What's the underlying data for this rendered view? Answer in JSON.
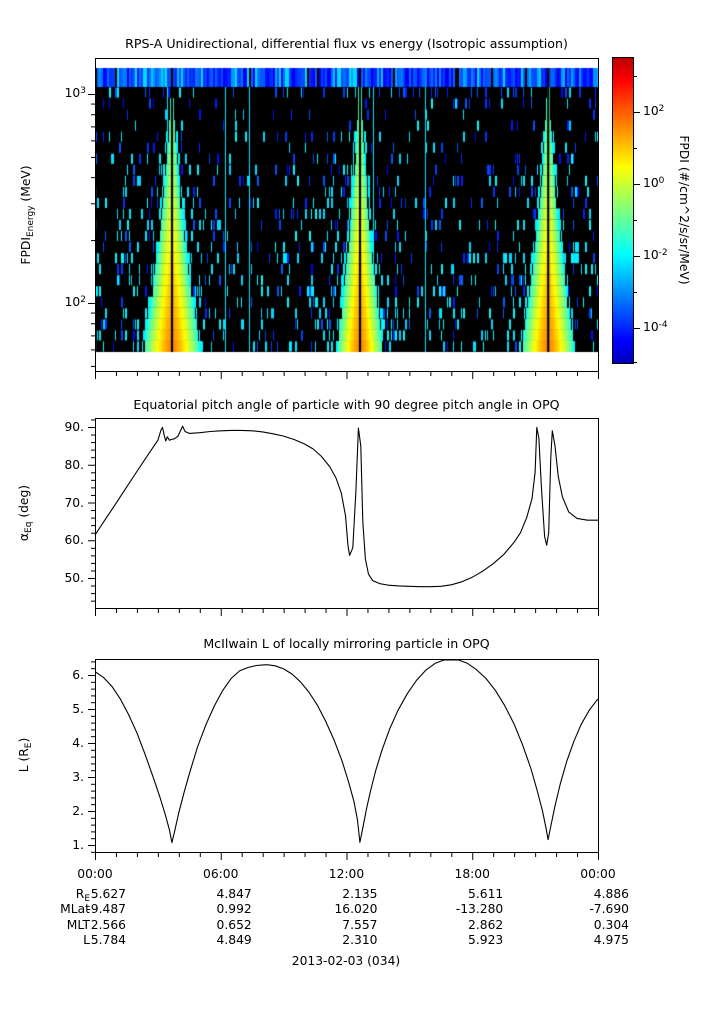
{
  "figure": {
    "background": "#ffffff"
  },
  "time_axis": {
    "tick_labels": [
      "00:00",
      "06:00",
      "12:00",
      "18:00",
      "00:00"
    ],
    "major_step_h": 6,
    "minor_step_h": 1,
    "range_h": [
      0,
      24
    ]
  },
  "chart_data": [
    {
      "type": "heatmap",
      "title": "RPS-A Unidirectional, differential flux vs energy (Isotropic assumption)",
      "ylabel": {
        "main": "FPDI",
        "sub": "Energy",
        "unit": " (MeV)"
      },
      "yscale": "log",
      "yrange_mev": [
        47,
        1470
      ],
      "ytick_major_mev": [
        100,
        1000
      ],
      "ytick_exponents": [
        3,
        2
      ],
      "ytick_minor_mev": [
        50,
        60,
        70,
        80,
        90,
        200,
        300,
        400,
        500,
        600,
        700,
        800,
        900
      ],
      "top_band": {
        "energy_mev": [
          1070,
          1320
        ],
        "color_hint": "blue stripes"
      },
      "background_color": "#000000",
      "enhancements": [
        {
          "center_h": 3.67,
          "halfwidth_h": 1.34,
          "core_color": "orange",
          "edge_color": "green"
        },
        {
          "center_h": 12.64,
          "halfwidth_h": 1.1,
          "core_color": "orange",
          "edge_color": "green"
        },
        {
          "center_h": 21.62,
          "halfwidth_h": 1.24,
          "core_color": "orange",
          "edge_color": "green"
        }
      ],
      "data_gap_at_enhancement_centers": true,
      "colorbar": {
        "label": "FPDI (#/cm^2/s/sr/MeV)",
        "tick_exponents": [
          2,
          0,
          -2,
          -4
        ],
        "minor_exponents": [
          3,
          1,
          -1,
          -3,
          -5
        ],
        "range_exponents": [
          -5,
          3.5
        ],
        "colormap": "jet"
      }
    },
    {
      "type": "line",
      "title": "Equatorial pitch angle of particle with 90 degree pitch angle in OPQ",
      "ylabel": {
        "main": "α",
        "sub": "Eq",
        "unit": " (deg)"
      },
      "yticks": [
        50,
        60,
        70,
        80,
        90
      ],
      "ytick_labels": [
        "50.",
        "60.",
        "70.",
        "80.",
        "90."
      ],
      "minor_step": 2,
      "yrange": [
        42.1,
        92.4
      ],
      "points": [
        [
          0,
          61.4
        ],
        [
          0.5,
          65.6
        ],
        [
          1,
          69.8
        ],
        [
          1.5,
          74
        ],
        [
          2,
          78.2
        ],
        [
          2.5,
          82.4
        ],
        [
          3,
          86.5
        ],
        [
          3.15,
          89.2
        ],
        [
          3.22,
          89.9
        ],
        [
          3.3,
          87.8
        ],
        [
          3.38,
          86.3
        ],
        [
          3.45,
          87.4
        ],
        [
          3.55,
          86.5
        ],
        [
          3.65,
          86.7
        ],
        [
          3.8,
          86.9
        ],
        [
          3.95,
          87.5
        ],
        [
          4.08,
          89
        ],
        [
          4.18,
          90.2
        ],
        [
          4.3,
          88.8
        ],
        [
          4.5,
          88.3
        ],
        [
          5,
          88.5
        ],
        [
          5.5,
          88.8
        ],
        [
          6,
          89
        ],
        [
          6.5,
          89.1
        ],
        [
          7,
          89.1
        ],
        [
          7.5,
          89
        ],
        [
          8,
          88.7
        ],
        [
          8.5,
          88.2
        ],
        [
          9,
          87.6
        ],
        [
          9.5,
          86.7
        ],
        [
          10,
          85.5
        ],
        [
          10.4,
          84.2
        ],
        [
          10.8,
          82.2
        ],
        [
          11.2,
          79.5
        ],
        [
          11.5,
          76.5
        ],
        [
          11.75,
          72.5
        ],
        [
          11.95,
          66.5
        ],
        [
          12.07,
          58.5
        ],
        [
          12.15,
          56
        ],
        [
          12.3,
          58
        ],
        [
          12.45,
          73
        ],
        [
          12.57,
          89.7
        ],
        [
          12.68,
          85
        ],
        [
          12.78,
          65
        ],
        [
          12.9,
          55
        ],
        [
          13.05,
          51
        ],
        [
          13.25,
          49.3
        ],
        [
          13.6,
          48.5
        ],
        [
          14,
          48.1
        ],
        [
          14.5,
          47.9
        ],
        [
          15,
          47.8
        ],
        [
          15.5,
          47.7
        ],
        [
          16,
          47.7
        ],
        [
          16.5,
          47.8
        ],
        [
          17,
          48.2
        ],
        [
          17.5,
          49
        ],
        [
          18,
          50.2
        ],
        [
          18.5,
          51.8
        ],
        [
          19,
          53.8
        ],
        [
          19.5,
          56.2
        ],
        [
          20,
          59.5
        ],
        [
          20.3,
          62
        ],
        [
          20.6,
          66
        ],
        [
          20.85,
          71
        ],
        [
          21,
          78
        ],
        [
          21.08,
          89.9
        ],
        [
          21.18,
          87
        ],
        [
          21.3,
          74
        ],
        [
          21.45,
          61
        ],
        [
          21.55,
          58.7
        ],
        [
          21.65,
          62
        ],
        [
          21.75,
          82
        ],
        [
          21.82,
          89
        ],
        [
          21.95,
          85
        ],
        [
          22.1,
          77
        ],
        [
          22.3,
          71.5
        ],
        [
          22.6,
          67.5
        ],
        [
          23,
          65.8
        ],
        [
          23.5,
          65.3
        ],
        [
          24,
          65.3
        ]
      ]
    },
    {
      "type": "line",
      "title": "McIlwain L of locally mirroring particle in OPQ",
      "ylabel": {
        "main": "L (R",
        "sub": "E",
        "unit": ")"
      },
      "yticks": [
        1,
        2,
        3,
        4,
        5,
        6
      ],
      "ytick_labels": [
        "1.",
        "2.",
        "3.",
        "4.",
        "5.",
        "6."
      ],
      "minor_step": 0.2,
      "yrange": [
        0.79,
        6.47
      ],
      "points": [
        [
          0,
          6.1
        ],
        [
          0.4,
          5.93
        ],
        [
          0.8,
          5.67
        ],
        [
          1.2,
          5.3
        ],
        [
          1.6,
          4.84
        ],
        [
          2,
          4.3
        ],
        [
          2.4,
          3.65
        ],
        [
          2.8,
          2.95
        ],
        [
          3.1,
          2.4
        ],
        [
          3.35,
          1.9
        ],
        [
          3.55,
          1.45
        ],
        [
          3.67,
          1.07
        ],
        [
          3.8,
          1.4
        ],
        [
          4,
          1.95
        ],
        [
          4.25,
          2.55
        ],
        [
          4.55,
          3.2
        ],
        [
          4.9,
          3.9
        ],
        [
          5.3,
          4.55
        ],
        [
          5.7,
          5.1
        ],
        [
          6.1,
          5.55
        ],
        [
          6.5,
          5.9
        ],
        [
          6.9,
          6.12
        ],
        [
          7.3,
          6.22
        ],
        [
          7.7,
          6.28
        ],
        [
          8.1,
          6.3
        ],
        [
          8.25,
          6.3
        ],
        [
          8.6,
          6.27
        ],
        [
          9,
          6.18
        ],
        [
          9.4,
          6.03
        ],
        [
          9.8,
          5.8
        ],
        [
          10.2,
          5.5
        ],
        [
          10.6,
          5.12
        ],
        [
          11,
          4.65
        ],
        [
          11.4,
          4.1
        ],
        [
          11.8,
          3.45
        ],
        [
          12.1,
          2.85
        ],
        [
          12.35,
          2.3
        ],
        [
          12.52,
          1.75
        ],
        [
          12.64,
          1.08
        ],
        [
          12.78,
          1.5
        ],
        [
          12.95,
          2.05
        ],
        [
          13.15,
          2.6
        ],
        [
          13.4,
          3.2
        ],
        [
          13.7,
          3.8
        ],
        [
          14.05,
          4.4
        ],
        [
          14.45,
          4.95
        ],
        [
          14.9,
          5.45
        ],
        [
          15.35,
          5.85
        ],
        [
          15.8,
          6.15
        ],
        [
          16.25,
          6.35
        ],
        [
          16.65,
          6.44
        ],
        [
          17,
          6.47
        ],
        [
          17.35,
          6.44
        ],
        [
          17.75,
          6.35
        ],
        [
          18.2,
          6.16
        ],
        [
          18.65,
          5.9
        ],
        [
          19.1,
          5.55
        ],
        [
          19.55,
          5.1
        ],
        [
          20,
          4.55
        ],
        [
          20.4,
          3.95
        ],
        [
          20.8,
          3.25
        ],
        [
          21.1,
          2.6
        ],
        [
          21.35,
          2
        ],
        [
          21.52,
          1.5
        ],
        [
          21.62,
          1.16
        ],
        [
          21.75,
          1.55
        ],
        [
          21.95,
          2.15
        ],
        [
          22.2,
          2.8
        ],
        [
          22.5,
          3.45
        ],
        [
          22.85,
          4.05
        ],
        [
          23.2,
          4.55
        ],
        [
          23.6,
          4.98
        ],
        [
          24,
          5.3
        ]
      ]
    }
  ],
  "footer": {
    "rows": [
      {
        "label_main": "R",
        "label_sub": "E",
        "values": [
          "5.627",
          "4.847",
          "2.135",
          "5.611",
          "4.886"
        ]
      },
      {
        "label_main": "MLat",
        "label_sub": "",
        "values": [
          "-9.487",
          "0.992",
          "16.020",
          "-13.280",
          "-7.690"
        ]
      },
      {
        "label_main": "MLT",
        "label_sub": "",
        "values": [
          "2.566",
          "0.652",
          "7.557",
          "2.862",
          "0.304"
        ]
      },
      {
        "label_main": "L",
        "label_sub": "",
        "values": [
          "5.784",
          "4.849",
          "2.310",
          "5.923",
          "4.975"
        ]
      }
    ],
    "date_label": "2013-02-03 (034)"
  }
}
